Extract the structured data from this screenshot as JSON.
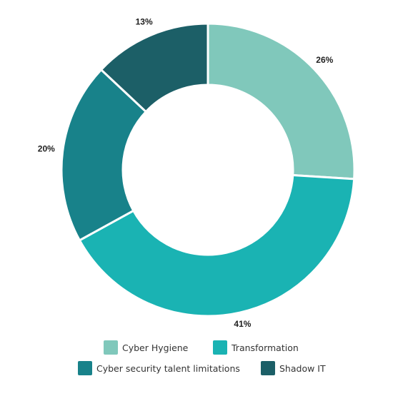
{
  "chart_data": {
    "type": "pie",
    "variant": "donut",
    "categories": [
      "Cyber Hygiene",
      "Transformation",
      "Cyber security talent limitations",
      "Shadow IT"
    ],
    "values": [
      26,
      41,
      20,
      13
    ],
    "labels": [
      "26%",
      "41%",
      "20%",
      "13%"
    ],
    "colors": [
      "#80c8bb",
      "#1ab3b3",
      "#18828a",
      "#1c5f67"
    ],
    "unit": "%",
    "legend_placement": "bottom"
  }
}
